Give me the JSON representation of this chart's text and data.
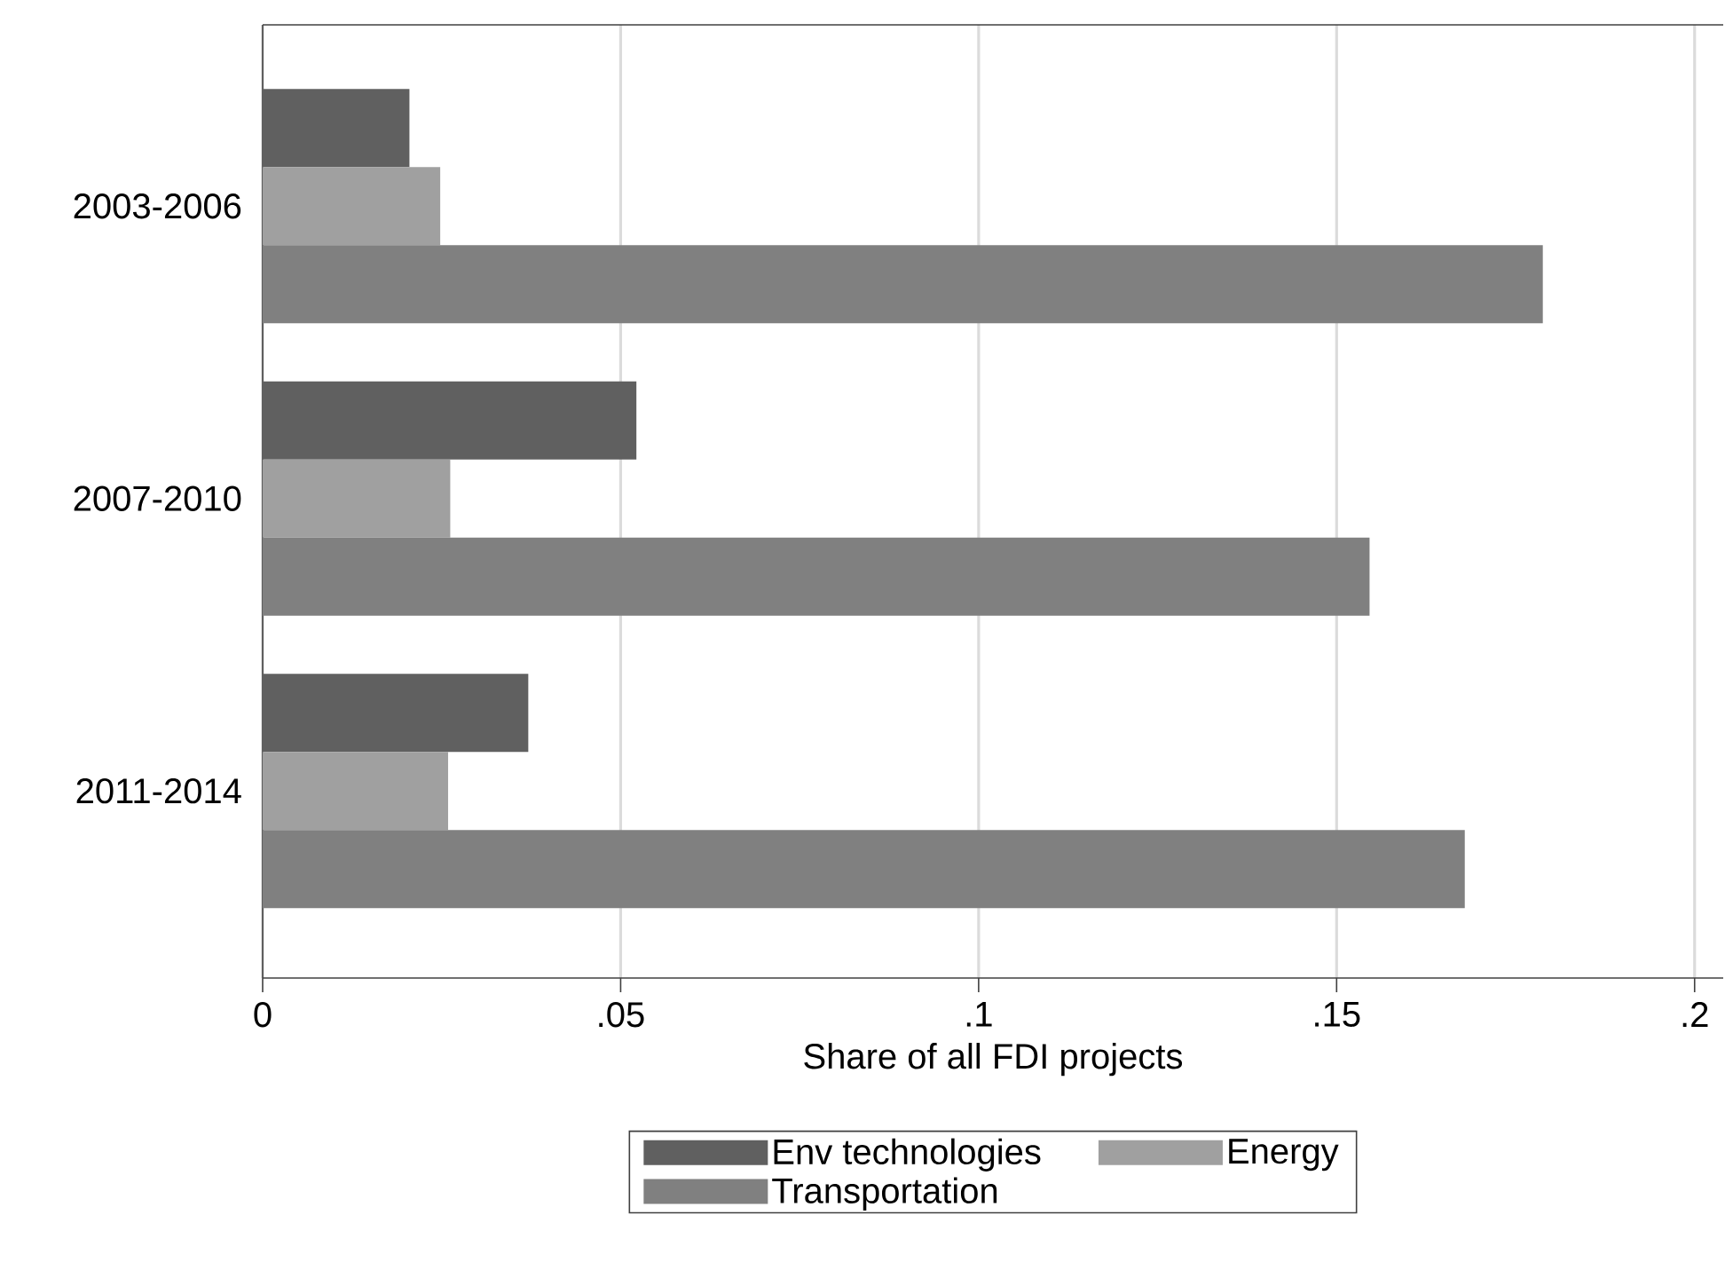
{
  "chart_data": {
    "type": "bar",
    "orientation": "horizontal",
    "xlabel": "Share of all FDI projects",
    "categories": [
      "2003-2006",
      "2007-2010",
      "2011-2014"
    ],
    "series": [
      {
        "name": "Env technologies",
        "color": "#606060",
        "values": [
          0.0205,
          0.0522,
          0.0371
        ]
      },
      {
        "name": "Energy",
        "color": "#a0a0a0",
        "values": [
          0.0248,
          0.0262,
          0.0259
        ]
      },
      {
        "name": "Transportation",
        "color": "#808080",
        "values": [
          0.1788,
          0.1546,
          0.1679
        ]
      }
    ],
    "xlim": [
      0,
      0.204
    ],
    "xticks": [
      0,
      {
        "value": 0.05,
        "label": ".05"
      },
      {
        "value": 0.1,
        "label": ".1"
      },
      {
        "value": 0.15,
        "label": ".15"
      },
      {
        "value": 0.2,
        "label": ".2"
      }
    ],
    "grid": "x",
    "legend": "bottom"
  }
}
